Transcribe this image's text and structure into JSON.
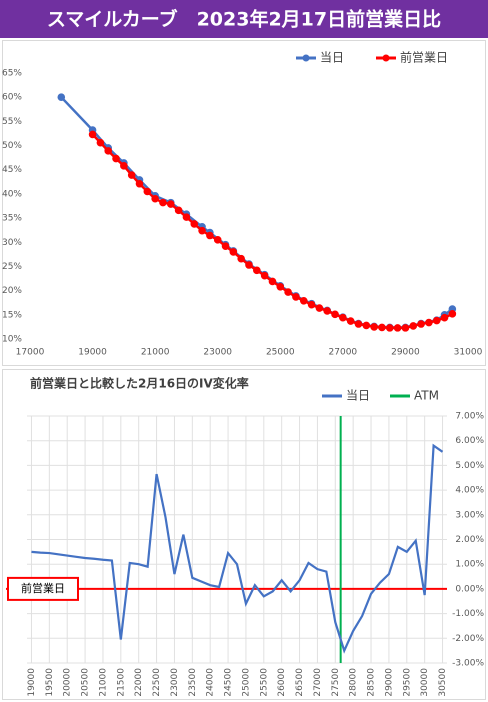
{
  "title": "スマイルカーブ　2023年2月17日前営業日比",
  "chart_data": [
    {
      "type": "line",
      "markers": true,
      "grid": false,
      "xlim": [
        17000,
        31000
      ],
      "xticks": [
        17000,
        19000,
        21000,
        23000,
        25000,
        27000,
        29000,
        31000
      ],
      "ylim": [
        10,
        65
      ],
      "yticks": [
        {
          "value": 10,
          "label": "10%"
        },
        {
          "value": 15,
          "label": "15%"
        },
        {
          "value": 20,
          "label": "20%"
        },
        {
          "value": 25,
          "label": "25%"
        },
        {
          "value": 30,
          "label": "30%"
        },
        {
          "value": 35,
          "label": "35%"
        },
        {
          "value": 40,
          "label": "40%"
        },
        {
          "value": 45,
          "label": "45%"
        },
        {
          "value": 50,
          "label": "50%"
        },
        {
          "value": 55,
          "label": "55%"
        },
        {
          "value": 60,
          "label": "60%"
        },
        {
          "value": 65,
          "label": "65%"
        }
      ],
      "series": [
        {
          "name": "当日",
          "color": "#4472c4",
          "x": [
            18000,
            19000,
            19500,
            20000,
            20500,
            21000,
            21500,
            22000,
            22500,
            22750,
            23250,
            23500,
            24000,
            24500,
            25000,
            25500,
            26000,
            26500,
            27000,
            27500,
            28000,
            28500,
            29000,
            29500,
            30000,
            30250,
            30500
          ],
          "values": [
            60.0,
            53.2,
            49.5,
            46.4,
            42.9,
            39.6,
            38.2,
            35.8,
            33.2,
            32.0,
            29.5,
            28.2,
            25.5,
            23.3,
            21.0,
            18.9,
            17.3,
            15.9,
            14.5,
            13.2,
            12.6,
            12.4,
            12.4,
            13.2,
            13.9,
            15.0,
            16.2
          ]
        },
        {
          "name": "前営業日",
          "color": "#ff0000",
          "x": [
            19000,
            19250,
            19500,
            19750,
            20000,
            20250,
            20500,
            20750,
            21000,
            21250,
            21500,
            21750,
            22000,
            22250,
            22500,
            22750,
            23000,
            23250,
            23500,
            23750,
            24000,
            24250,
            24500,
            24750,
            25000,
            25250,
            25500,
            25750,
            26000,
            26250,
            26500,
            26750,
            27000,
            27250,
            27500,
            27750,
            28000,
            28250,
            28500,
            28750,
            29000,
            29250,
            29500,
            29750,
            30000,
            30250,
            30500
          ],
          "values": [
            52.3,
            50.6,
            48.9,
            47.3,
            45.8,
            43.9,
            42.1,
            40.5,
            39.0,
            38.2,
            37.9,
            36.6,
            35.2,
            33.8,
            32.4,
            31.4,
            30.5,
            29.2,
            28.0,
            26.6,
            25.3,
            24.2,
            23.1,
            21.9,
            20.8,
            19.7,
            18.7,
            17.9,
            17.1,
            16.4,
            15.8,
            15.1,
            14.4,
            13.7,
            13.1,
            12.8,
            12.5,
            12.4,
            12.3,
            12.3,
            12.3,
            12.7,
            13.1,
            13.4,
            13.8,
            14.4,
            15.2
          ]
        }
      ]
    },
    {
      "type": "line",
      "markers": false,
      "grid": true,
      "title": "前営業日と比較した2月16日のIV変化率",
      "xlim": [
        18875,
        30625
      ],
      "xticks": [
        19000,
        19500,
        20000,
        20500,
        21000,
        21500,
        22000,
        22500,
        23000,
        23500,
        24000,
        24500,
        25000,
        25500,
        26000,
        26500,
        27000,
        27500,
        28000,
        28500,
        29000,
        29500,
        30000,
        30500
      ],
      "ylim": [
        -3,
        7
      ],
      "yticks": [
        {
          "value": -3,
          "label": "-3.00%"
        },
        {
          "value": -2,
          "label": "-2.00%"
        },
        {
          "value": -1,
          "label": "-1.00%"
        },
        {
          "value": 0,
          "label": "0.00%"
        },
        {
          "value": 1,
          "label": "1.00%"
        },
        {
          "value": 2,
          "label": "2.00%"
        },
        {
          "value": 3,
          "label": "3.00%"
        },
        {
          "value": 4,
          "label": "4.00%"
        },
        {
          "value": 5,
          "label": "5.00%"
        },
        {
          "value": 6,
          "label": "6.00%"
        },
        {
          "value": 7,
          "label": "7.00%"
        }
      ],
      "x": [
        19000,
        19250,
        19500,
        19750,
        20000,
        20250,
        20500,
        20750,
        21000,
        21250,
        21500,
        21750,
        22000,
        22250,
        22500,
        22750,
        23000,
        23250,
        23500,
        23750,
        24000,
        24250,
        24500,
        24750,
        25000,
        25250,
        25500,
        25750,
        26000,
        26250,
        26500,
        26750,
        27000,
        27250,
        27500,
        27750,
        28000,
        28250,
        28500,
        28750,
        29000,
        29250,
        29500,
        29750,
        30000,
        30250,
        30500
      ],
      "series": [
        {
          "name": "当日",
          "color": "#4472c4",
          "values": [
            1.5,
            1.47,
            1.45,
            1.4,
            1.35,
            1.3,
            1.25,
            1.22,
            1.18,
            1.15,
            -2.05,
            1.05,
            1.0,
            0.9,
            4.65,
            2.9,
            0.6,
            2.2,
            0.45,
            0.3,
            0.15,
            0.08,
            1.45,
            1.0,
            -0.6,
            0.15,
            -0.3,
            -0.1,
            0.35,
            -0.1,
            0.35,
            1.05,
            0.8,
            0.7,
            -1.35,
            -2.5,
            -1.7,
            -1.1,
            -0.2,
            0.25,
            0.6,
            1.7,
            1.5,
            1.95,
            -0.25,
            5.8,
            5.55
          ]
        }
      ],
      "vlines": [
        {
          "name": "ATM",
          "color": "#00b050",
          "at": 27650
        }
      ],
      "reference_line": {
        "label": "前営業日",
        "value": 0,
        "color": "#ff0000"
      }
    }
  ]
}
